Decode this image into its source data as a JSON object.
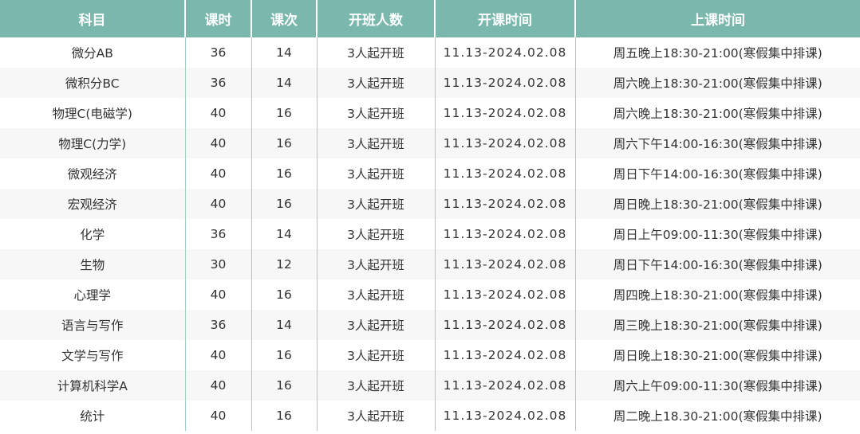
{
  "table": {
    "headers": [
      "科目",
      "课时",
      "课次",
      "开班人数",
      "开课时间",
      "上课时间"
    ],
    "rows": [
      [
        "微分AB",
        "36",
        "14",
        "3人起开班",
        "11.13-2024.02.08",
        "周五晚上18:30-21:00(寒假集中排课)"
      ],
      [
        "微积分BC",
        "36",
        "14",
        "3人起开班",
        "11.13-2024.02.08",
        "周六晚上18:30-21:00(寒假集中排课)"
      ],
      [
        "物理C(电磁学)",
        "40",
        "16",
        "3人起开班",
        "11.13-2024.02.08",
        "周六晚上18:30-21:00(寒假集中排课)"
      ],
      [
        "物理C(力学)",
        "40",
        "16",
        "3人起开班",
        "11.13-2024.02.08",
        "周六下午14:00-16:30(寒假集中排课)"
      ],
      [
        "微观经济",
        "40",
        "16",
        "3人起开班",
        "11.13-2024.02.08",
        "周日下午14:00-16:30(寒假集中排课)"
      ],
      [
        "宏观经济",
        "40",
        "16",
        "3人起开班",
        "11.13-2024.02.08",
        "周日晚上18:30-21:00(寒假集中排课)"
      ],
      [
        "化学",
        "36",
        "14",
        "3人起开班",
        "11.13-2024.02.08",
        "周日上午09:00-11:30(寒假集中排课)"
      ],
      [
        "生物",
        "30",
        "12",
        "3人起开班",
        "11.13-2024.02.08",
        "周日下午14:00-16:30(寒假集中排课)"
      ],
      [
        "心理学",
        "40",
        "16",
        "3人起开班",
        "11.13-2024.02.08",
        "周四晚上18:30-21:00(寒假集中排课)"
      ],
      [
        "语言与写作",
        "36",
        "14",
        "3人起开班",
        "11.13-2024.02.08",
        "周三晚上18:30-21:00(寒假集中排课)"
      ],
      [
        "文学与写作",
        "40",
        "16",
        "3人起开班",
        "11.13-2024.02.08",
        "周日晚上18:30-21:00(寒假集中排课)"
      ],
      [
        "计算机科学A",
        "40",
        "16",
        "3人起开班",
        "11.13-2024.02.08",
        "周六上午09:00-11:30(寒假集中排课)"
      ],
      [
        "统计",
        "40",
        "16",
        "3人起开班",
        "11.13-2024.02.08",
        "周二晚上18.30-21:00(寒假集中排课)"
      ]
    ]
  },
  "colors": {
    "header_bg": "#7ab8ad",
    "alt_row_bg": "#f7f7f7"
  }
}
